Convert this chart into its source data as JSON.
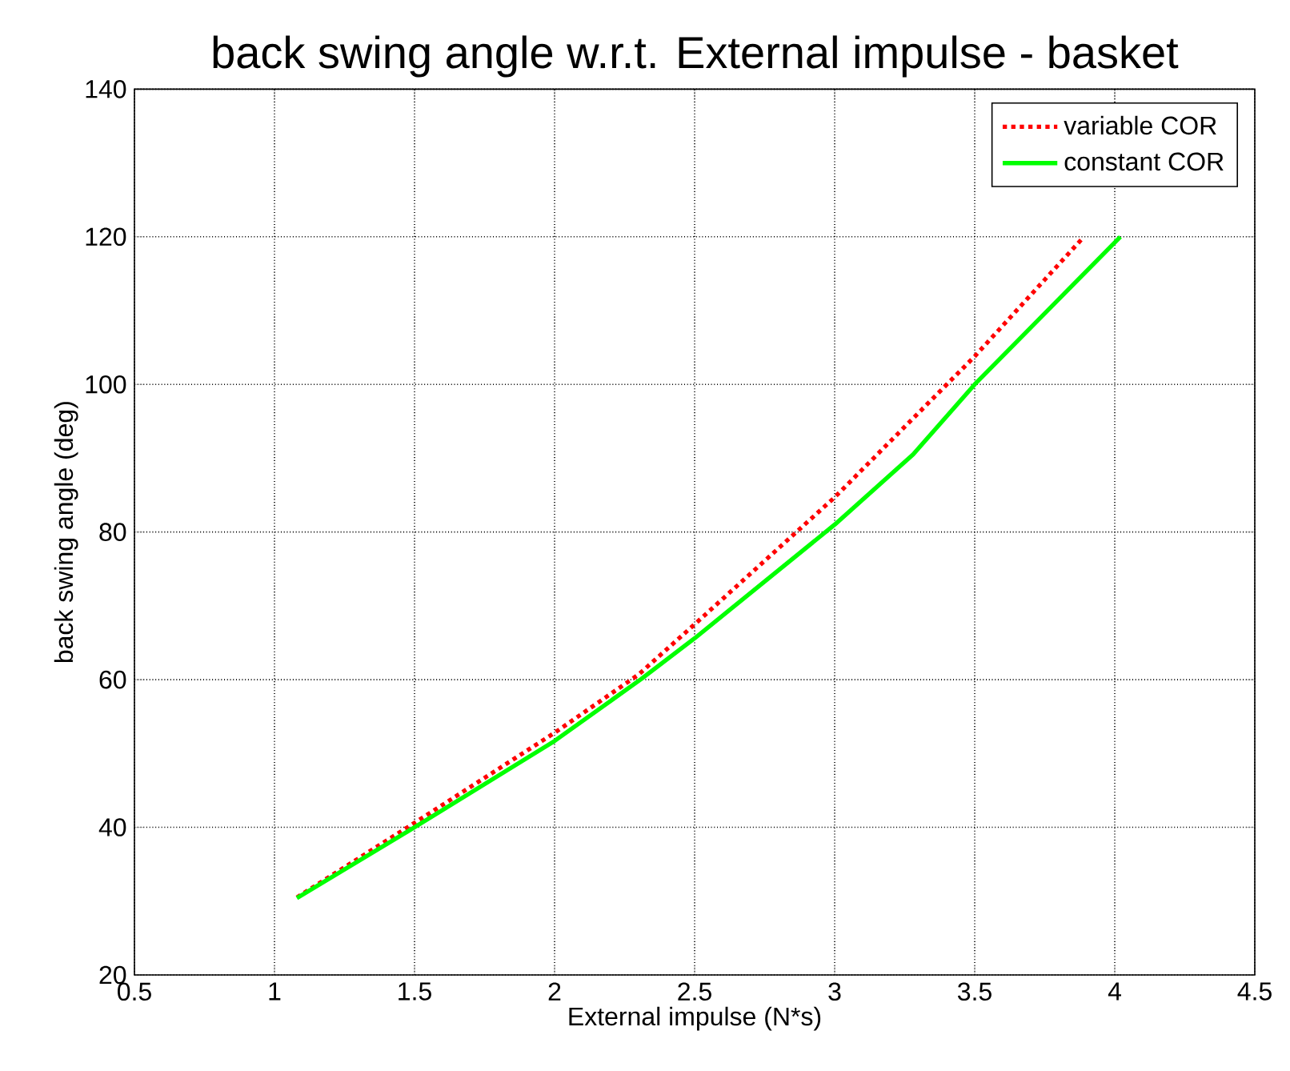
{
  "chart_data": {
    "type": "line",
    "title": "back swing angle w.r.t. External impulse - basket",
    "xlabel": "External impulse (N*s)",
    "ylabel": "back swing angle (deg)",
    "xlim": [
      0.5,
      4.5
    ],
    "ylim": [
      20,
      140
    ],
    "xticks": [
      0.5,
      1,
      1.5,
      2,
      2.5,
      3,
      3.5,
      4,
      4.5
    ],
    "yticks": [
      20,
      40,
      60,
      80,
      100,
      120,
      140
    ],
    "grid": true,
    "legend": "top right",
    "series": [
      {
        "name": "variable COR",
        "color": "#ff0000",
        "line_style": "dotted",
        "x": [
          1.08,
          1.5,
          2.0,
          2.3,
          2.5,
          3.0,
          3.5,
          3.89
        ],
        "values": [
          30.5,
          40.6,
          52.8,
          60.7,
          67.5,
          84.7,
          103.8,
          120
        ]
      },
      {
        "name": "constant COR",
        "color": "#00ff00",
        "line_style": "solid",
        "x": [
          1.08,
          1.5,
          2.0,
          2.31,
          2.5,
          3.0,
          3.28,
          3.5,
          4.02
        ],
        "values": [
          30.4,
          40,
          51.7,
          60.1,
          65.6,
          81,
          90.5,
          100,
          120
        ]
      }
    ]
  }
}
